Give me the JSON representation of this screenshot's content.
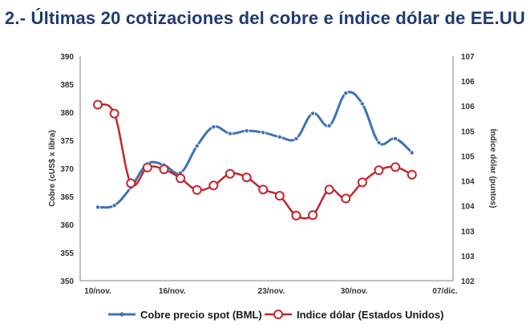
{
  "title": "2.- Últimas 20 cotizaciones del cobre e índice dólar de EE.UU",
  "chart_data": {
    "type": "line",
    "title": "2.- Últimas 20 cotizaciones del cobre e índice dólar de EE.UU",
    "x_tick_labels": [
      "10/nov.",
      "16/nov.",
      "23/nov.",
      "30/nov.",
      "07/dic."
    ],
    "y_left": {
      "label": "Cobre (cUS$ x libra)",
      "range": [
        350,
        390
      ],
      "ticks": [
        "350",
        "355",
        "360",
        "365",
        "370",
        "375",
        "380",
        "385",
        "390"
      ]
    },
    "y_right": {
      "label": "Índice dólar (puntos)",
      "range": [
        102,
        107
      ],
      "ticks": [
        "102",
        "103",
        "103",
        "104",
        "104",
        "105",
        "105",
        "106",
        "106",
        "107"
      ]
    },
    "x_tick_positions": [
      0,
      4.5,
      10.5,
      15.5,
      21
    ],
    "series": [
      {
        "name": "Cobre precio spot (BML)",
        "axis": "left",
        "color": "#3f73b5",
        "marker": "dot",
        "x": [
          0,
          1,
          2,
          3,
          4,
          5,
          6,
          7,
          8,
          9,
          10,
          11,
          12,
          13,
          14,
          15,
          16,
          17,
          18,
          19,
          20,
          21
        ],
        "values": [
          363.1,
          363.4,
          366.6,
          370.8,
          370.6,
          369.2,
          374.0,
          377.4,
          376.2,
          376.7,
          376.4,
          375.6,
          375.3,
          379.8,
          377.6,
          383.4,
          381.5,
          374.6,
          375.3,
          372.8,
          null,
          null
        ]
      },
      {
        "name": "Indice dólar (Estados Unidos)",
        "axis": "right",
        "color": "#c0272d",
        "marker": "ring",
        "x": [
          0,
          1,
          2,
          3,
          4,
          5,
          6,
          7,
          8,
          9,
          10,
          11,
          12,
          13,
          14,
          15,
          16,
          17,
          18,
          19,
          20,
          21
        ],
        "values": [
          105.92,
          105.72,
          104.17,
          104.52,
          104.48,
          104.28,
          104.02,
          104.12,
          104.38,
          104.3,
          104.03,
          103.89,
          103.45,
          103.46,
          104.03,
          103.83,
          104.19,
          104.46,
          104.53,
          104.36,
          null,
          null
        ]
      }
    ],
    "legend_position": "bottom",
    "grid": false
  }
}
